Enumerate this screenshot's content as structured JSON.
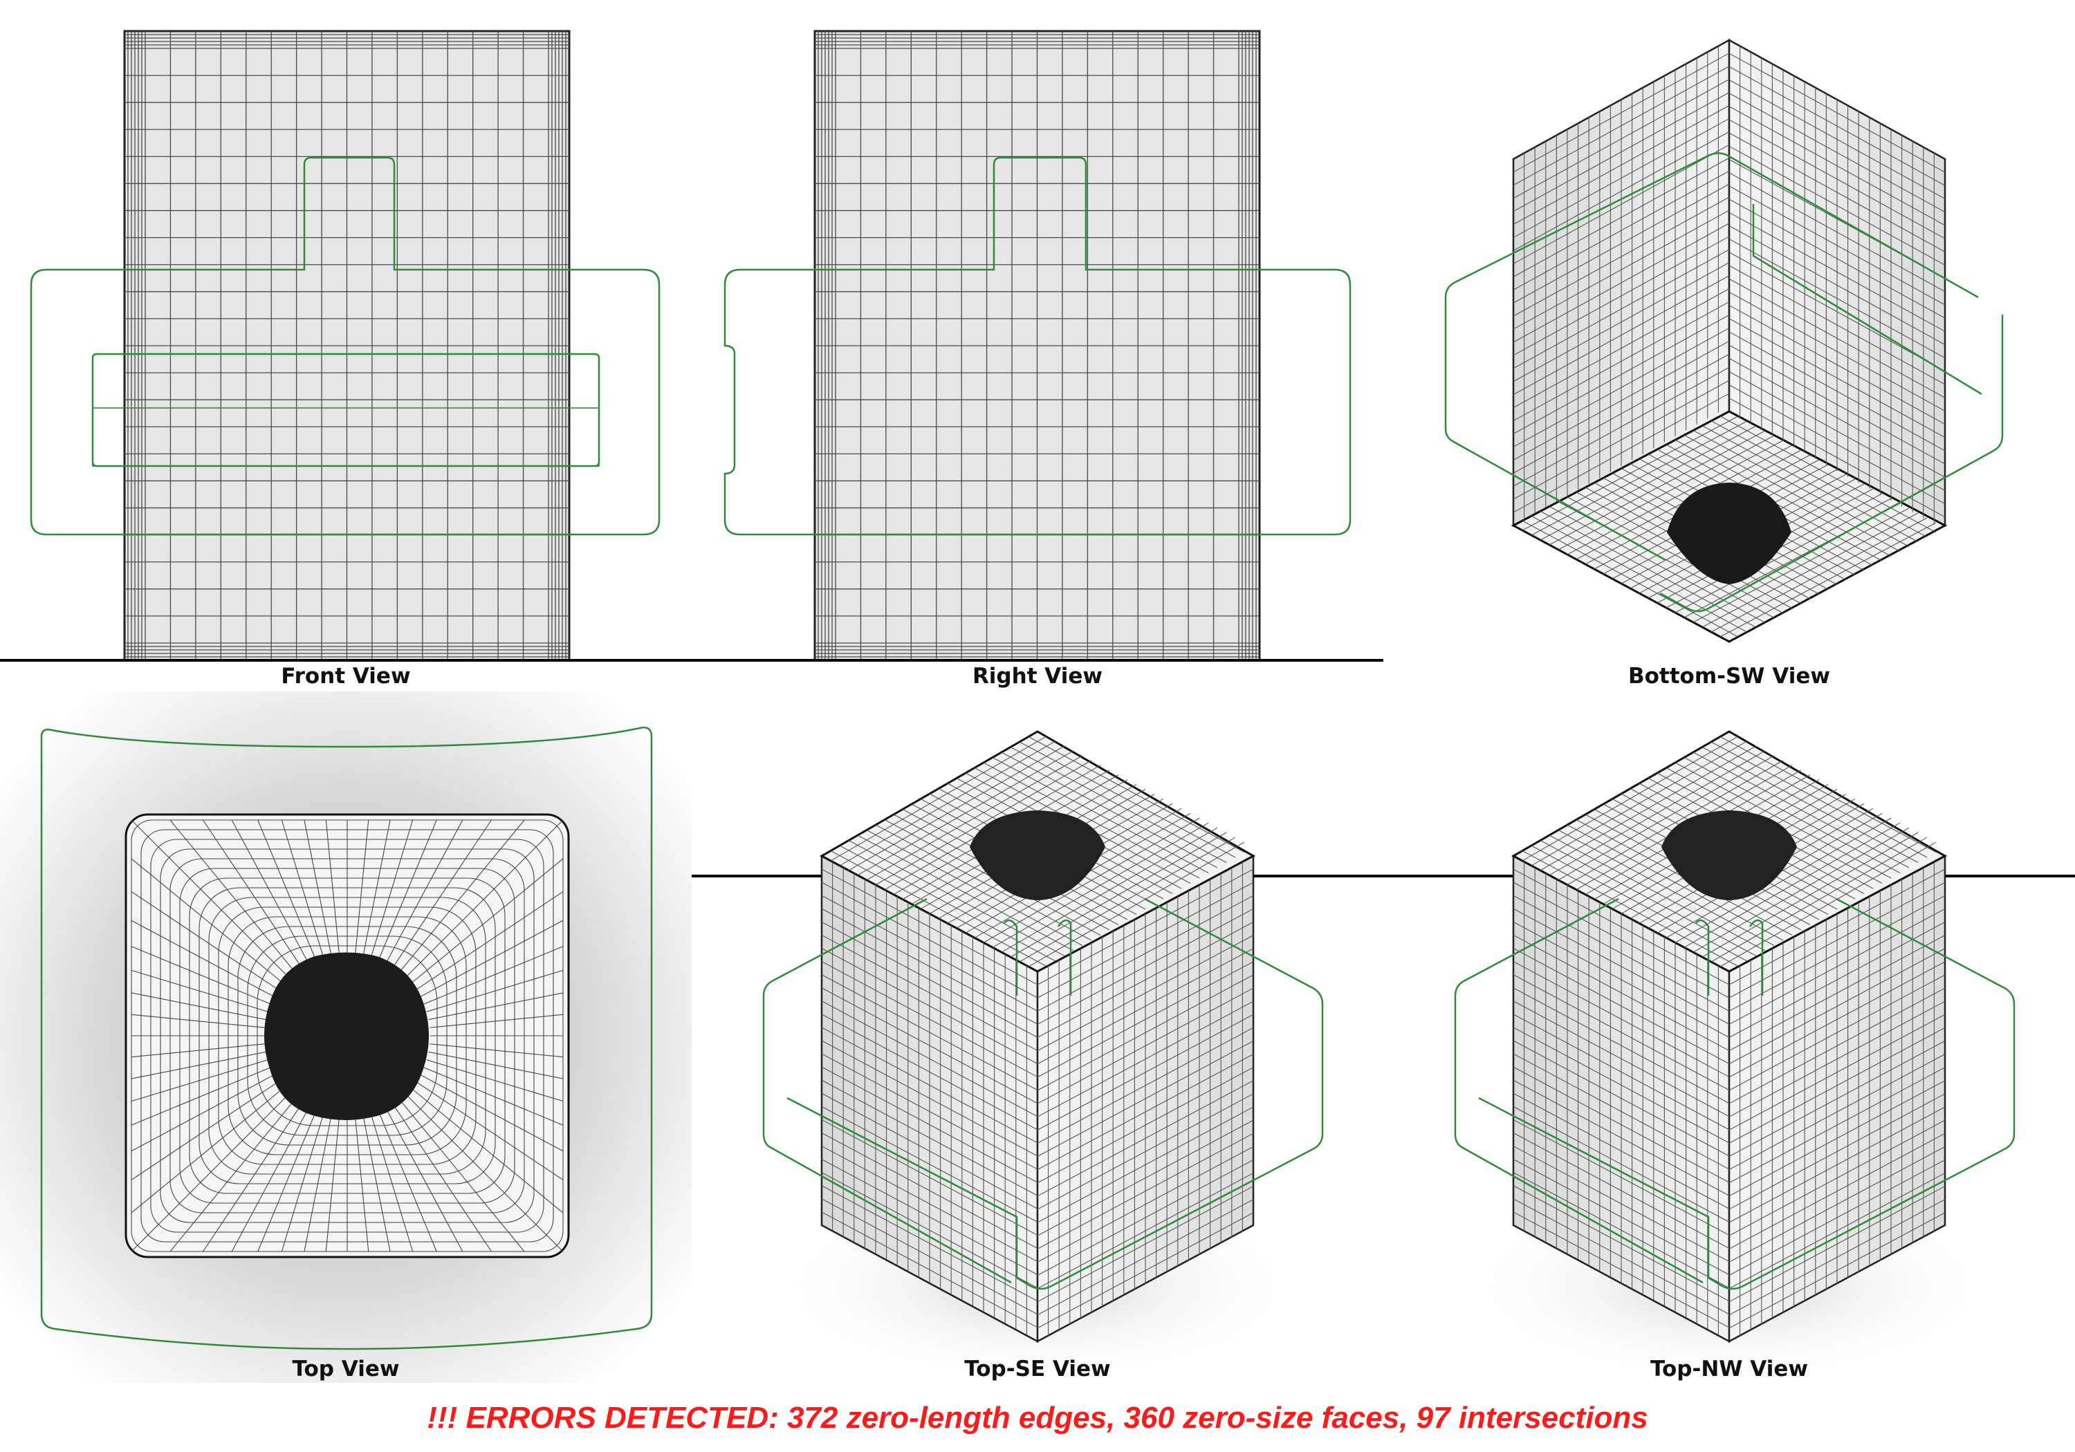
{
  "views": [
    {
      "key": "front",
      "label": "Front View"
    },
    {
      "key": "right",
      "label": "Right View"
    },
    {
      "key": "bottom_sw",
      "label": "Bottom-SW View"
    },
    {
      "key": "top",
      "label": "Top View"
    },
    {
      "key": "top_se",
      "label": "Top-SE View"
    },
    {
      "key": "top_nw",
      "label": "Top-NW View"
    }
  ],
  "status": {
    "error_message": "!!! ERRORS DETECTED: 372 zero-length edges, 360 zero-size faces, 97 intersections"
  },
  "colors": {
    "mesh_fill": "#e4e4e4",
    "mesh_line": "#333333",
    "path_line": "#2e8b3a",
    "error_text": "#ff1a1a",
    "hole_fill": "#1a1a1a",
    "ground_line": "#000000"
  }
}
